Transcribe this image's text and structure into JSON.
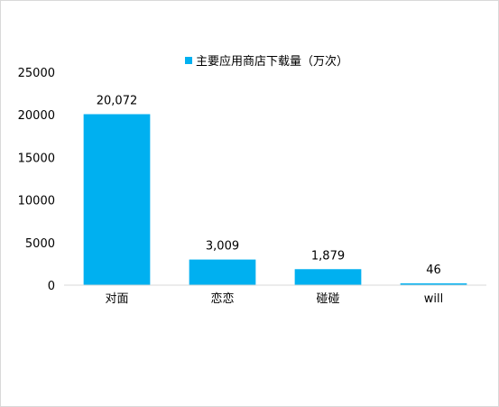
{
  "chart_data": {
    "type": "bar",
    "categories": [
      "对面",
      "恋恋",
      "碰碰",
      "will"
    ],
    "series": [
      {
        "name": "主要应用商店下载量（万次）",
        "values": [
          20072,
          3009,
          1879,
          46
        ],
        "data_labels": [
          "20,072",
          "3,009",
          "1,879",
          "46"
        ]
      }
    ],
    "y_ticks": [
      "0",
      "5000",
      "10000",
      "15000",
      "20000",
      "25000"
    ],
    "ylim": [
      0,
      25000
    ],
    "grid": false,
    "legend_position": "top",
    "bar_color": "#00b0f0",
    "axis_color": "#d9d9d9"
  }
}
